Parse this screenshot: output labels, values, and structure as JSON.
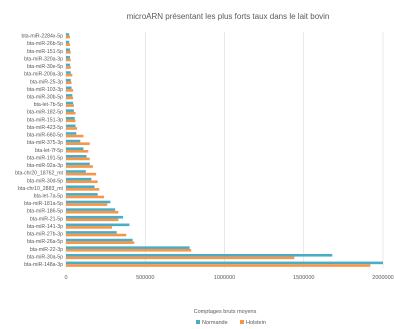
{
  "chart_data": {
    "type": "bar",
    "orientation": "horizontal",
    "title": "microARN présentant les plus forts taux dans le lait bovin",
    "xlabel": "Comptages bruts moyens",
    "ylabel": "",
    "xlim": [
      0,
      2000000
    ],
    "xticks": [
      0,
      500000,
      1000000,
      1500000,
      2000000
    ],
    "xtick_labels": [
      "0",
      "500000",
      "1000000",
      "1500000",
      "2000000"
    ],
    "grid": true,
    "legend_position": "bottom",
    "categories": [
      "bta-miR-2284x-5p",
      "bta-miR-26b-5p",
      "bta-miR-151-5p",
      "bta-miR-320a-3p",
      "bta-miR-30e-5p",
      "bta-miR-200a-3p",
      "bta-miR-25-3p",
      "bta-miR-103-3p",
      "bta-miR-30b-5p",
      "bta-let-7b-5p",
      "bta-miR-182-5p",
      "bta-miR-151-3p",
      "bta-miR-423-5p",
      "bta-miR-660-5p",
      "bta-miR-375-3p",
      "bta-let-7f-5p",
      "bta-miR-191-5p",
      "bta-miR-92a-3p",
      "bta-chr20_18762_mt",
      "bta-miR-30d-5p",
      "bta-chr10_2883_mt",
      "bta-let-7a-5p",
      "bta-miR-181a-5p",
      "bta-miR-186-5p",
      "bta-miR-21-5p",
      "bta-miR-141-3p",
      "bta-miR-27b-3p",
      "bta-miR-26a-5p",
      "bta-miR-22-3p",
      "bta-miR-30a-5p",
      "bta-miR-148a-3p"
    ],
    "series": [
      {
        "name": "Normande",
        "color": "#4BACC6",
        "values": [
          20000,
          20000,
          25000,
          25000,
          25000,
          30000,
          30000,
          35000,
          40000,
          45000,
          50000,
          55000,
          60000,
          65000,
          90000,
          110000,
          130000,
          150000,
          125000,
          160000,
          180000,
          200000,
          280000,
          310000,
          360000,
          400000,
          320000,
          420000,
          780000,
          1680000,
          2000000
        ]
      },
      {
        "name": "Holstein",
        "color": "#F79646",
        "values": [
          25000,
          25000,
          30000,
          30000,
          30000,
          40000,
          35000,
          45000,
          45000,
          50000,
          60000,
          60000,
          70000,
          110000,
          150000,
          140000,
          150000,
          170000,
          190000,
          200000,
          210000,
          240000,
          260000,
          330000,
          330000,
          290000,
          380000,
          430000,
          790000,
          1440000,
          1920000
        ]
      }
    ]
  }
}
